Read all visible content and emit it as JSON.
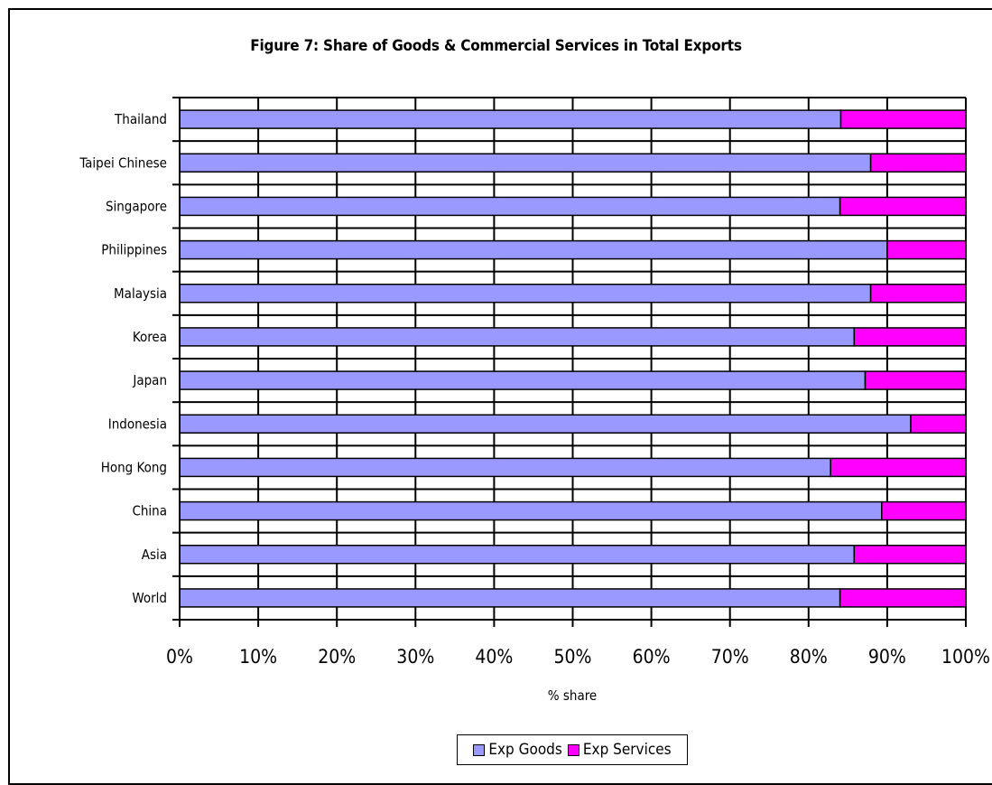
{
  "chart_data": {
    "type": "bar",
    "orientation": "horizontal",
    "stacked": true,
    "title": "Figure 7: Share of Goods & Commercial Services in Total Exports",
    "xlabel": "% share",
    "ylabel": "",
    "xlim": [
      0,
      100
    ],
    "x_ticks": [
      "0%",
      "10%",
      "20%",
      "30%",
      "40%",
      "50%",
      "60%",
      "70%",
      "80%",
      "90%",
      "100%"
    ],
    "grid": true,
    "legend_position": "bottom",
    "categories": [
      "Thailand",
      "Taipei Chinese",
      "Singapore",
      "Philippines",
      "Malaysia",
      "Korea",
      "Japan",
      "Indonesia",
      "Hong Kong",
      "China",
      "Asia",
      "World"
    ],
    "series": [
      {
        "name": "Exp Goods",
        "color": "#9999ff",
        "values": [
          84.1,
          87.9,
          84,
          90,
          87.9,
          85.8,
          87.2,
          93,
          82.8,
          89.3,
          85.8,
          84
        ]
      },
      {
        "name": "Exp Services",
        "color": "#ff00ff",
        "values": [
          15.9,
          12.1,
          16,
          10,
          12.1,
          14.2,
          12.8,
          7,
          17.2,
          10.7,
          14.2,
          16
        ]
      }
    ]
  }
}
